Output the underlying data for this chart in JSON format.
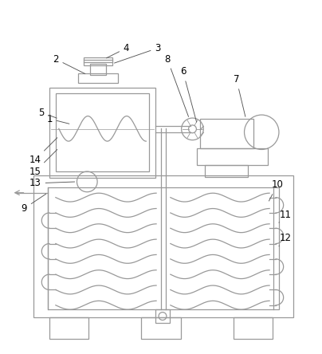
{
  "bg_color": "#ffffff",
  "line_color": "#999999",
  "label_color": "#000000",
  "lw": 0.9
}
